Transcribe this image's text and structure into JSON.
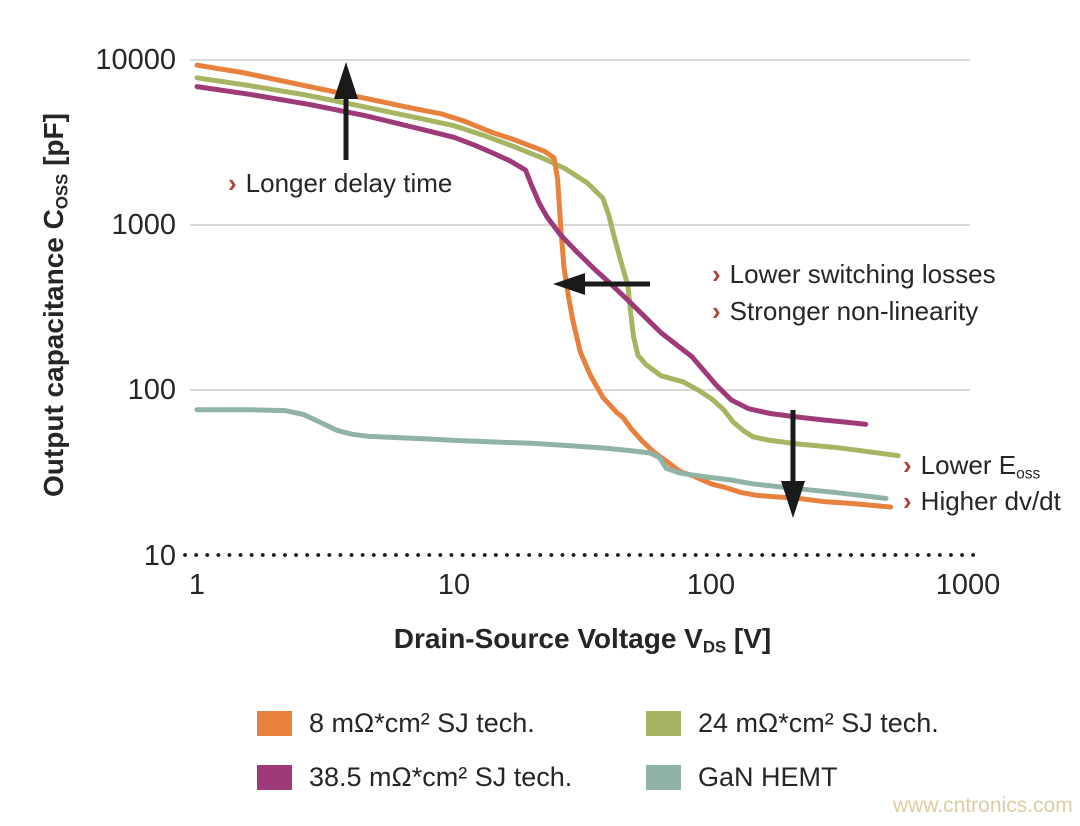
{
  "page": {
    "background": "#ffffff"
  },
  "watermark": {
    "text": "www.cntronics.com",
    "color": "#ddcda6"
  },
  "chart_data": {
    "type": "line",
    "title": "",
    "legend_position": "bottom",
    "marker_color": "#b2423c",
    "x_axis": {
      "label_main": "Drain-Source Voltage V",
      "label_sub": "DS",
      "label_unit": " [V]",
      "scale": "log",
      "ticks": [
        "1",
        "10",
        "100",
        "1000"
      ],
      "xlim": [
        1,
        1000
      ]
    },
    "y_axis": {
      "label_main": "Output capacitance C",
      "label_sub": "OSS",
      "label_unit": " [pF]",
      "scale": "log",
      "ticks": [
        "10000",
        "1000",
        "100",
        "10"
      ],
      "ylim": [
        10,
        10000
      ]
    },
    "grid": {
      "solid_lines_pF": [
        10000,
        1000,
        100
      ],
      "dotted_line_pF": 10,
      "color": "#dcdad8",
      "dotted_color": "#1a1a1a"
    },
    "series": [
      {
        "id": "8mohm-sj",
        "name": "8 mΩ*cm² SJ tech.",
        "color": "#e8813e",
        "points": [
          [
            1,
            9300
          ],
          [
            1.5,
            8400
          ],
          [
            2.5,
            7100
          ],
          [
            4,
            6100
          ],
          [
            6.5,
            5200
          ],
          [
            9,
            4700
          ],
          [
            11,
            4250
          ],
          [
            14,
            3650
          ],
          [
            17,
            3300
          ],
          [
            20,
            3000
          ],
          [
            22.5,
            2800
          ],
          [
            24.5,
            2550
          ],
          [
            25.3,
            1900
          ],
          [
            26,
            1000
          ],
          [
            26.8,
            550
          ],
          [
            27.8,
            380
          ],
          [
            29,
            265
          ],
          [
            31,
            170
          ],
          [
            34,
            122
          ],
          [
            38,
            90
          ],
          [
            43,
            73
          ],
          [
            45.5,
            68
          ],
          [
            49,
            58
          ],
          [
            54,
            49
          ],
          [
            60,
            42
          ],
          [
            67,
            37
          ],
          [
            76,
            32
          ],
          [
            86,
            30
          ],
          [
            100,
            27
          ],
          [
            115,
            25.5
          ],
          [
            130,
            24
          ],
          [
            150,
            23
          ],
          [
            180,
            22.5
          ],
          [
            220,
            22
          ],
          [
            280,
            21
          ],
          [
            360,
            20.5
          ],
          [
            500,
            19.5
          ]
        ]
      },
      {
        "id": "24mohm-sj",
        "name": "24 mΩ*cm² SJ tech.",
        "color": "#a6b562",
        "points": [
          [
            1,
            7800
          ],
          [
            1.6,
            7000
          ],
          [
            2.7,
            6100
          ],
          [
            4.5,
            5200
          ],
          [
            7.5,
            4400
          ],
          [
            10,
            4000
          ],
          [
            13,
            3500
          ],
          [
            17,
            3000
          ],
          [
            22,
            2550
          ],
          [
            27,
            2200
          ],
          [
            33,
            1800
          ],
          [
            38,
            1450
          ],
          [
            40,
            1150
          ],
          [
            42,
            850
          ],
          [
            44,
            650
          ],
          [
            46,
            510
          ],
          [
            47.5,
            430
          ],
          [
            48.5,
            310
          ],
          [
            50,
            210
          ],
          [
            52,
            162
          ],
          [
            56,
            142
          ],
          [
            64,
            122
          ],
          [
            78,
            112
          ],
          [
            90,
            99
          ],
          [
            101,
            88
          ],
          [
            112,
            76
          ],
          [
            122,
            64
          ],
          [
            135,
            56
          ],
          [
            146,
            52
          ],
          [
            170,
            49.5
          ],
          [
            220,
            47
          ],
          [
            300,
            45
          ],
          [
            400,
            42.5
          ],
          [
            535,
            40
          ]
        ]
      },
      {
        "id": "38_5mohm-sj",
        "name": "38.5 mΩ*cm² SJ tech.",
        "color": "#9e3a78",
        "points": [
          [
            1,
            6900
          ],
          [
            1.6,
            6200
          ],
          [
            2.7,
            5400
          ],
          [
            4.5,
            4600
          ],
          [
            7,
            3900
          ],
          [
            10,
            3400
          ],
          [
            12,
            3050
          ],
          [
            14,
            2750
          ],
          [
            16.5,
            2450
          ],
          [
            19,
            2150
          ],
          [
            20,
            1750
          ],
          [
            21.5,
            1350
          ],
          [
            23,
            1120
          ],
          [
            26,
            870
          ],
          [
            30,
            690
          ],
          [
            35,
            545
          ],
          [
            41,
            435
          ],
          [
            48,
            345
          ],
          [
            56,
            272
          ],
          [
            64,
            222
          ],
          [
            74,
            186
          ],
          [
            84,
            160
          ],
          [
            95,
            128
          ],
          [
            105,
            107
          ],
          [
            120,
            87
          ],
          [
            140,
            77
          ],
          [
            170,
            72
          ],
          [
            210,
            69
          ],
          [
            270,
            66
          ],
          [
            330,
            64
          ],
          [
            400,
            62
          ]
        ]
      },
      {
        "id": "gan-hemt",
        "name": "GaN HEMT",
        "color": "#91b3a6",
        "points": [
          [
            1,
            76
          ],
          [
            1.6,
            76
          ],
          [
            2.2,
            75
          ],
          [
            2.6,
            71
          ],
          [
            3,
            64
          ],
          [
            3.5,
            57
          ],
          [
            4,
            54
          ],
          [
            4.6,
            52.5
          ],
          [
            6,
            51.5
          ],
          [
            8,
            50.5
          ],
          [
            10,
            49.5
          ],
          [
            14,
            48.5
          ],
          [
            20,
            47.5
          ],
          [
            28,
            46
          ],
          [
            38,
            44.5
          ],
          [
            48,
            43
          ],
          [
            58,
            41.5
          ],
          [
            63,
            39
          ],
          [
            67,
            33.5
          ],
          [
            75,
            31.5
          ],
          [
            85,
            30.5
          ],
          [
            100,
            29.5
          ],
          [
            120,
            28.5
          ],
          [
            145,
            27
          ],
          [
            180,
            26
          ],
          [
            230,
            25
          ],
          [
            300,
            24
          ],
          [
            380,
            23
          ],
          [
            480,
            22
          ]
        ]
      }
    ],
    "arrows": [
      {
        "dir": "up",
        "x": 346,
        "from": 160,
        "to": 62
      },
      {
        "dir": "left",
        "y": 284,
        "from": 650,
        "to": 553
      },
      {
        "dir": "down",
        "x": 793,
        "from": 410,
        "to": 518
      }
    ],
    "annotations": {
      "longer_delay": {
        "marker": "›",
        "text": "Longer delay time"
      },
      "lower_switching": {
        "marker": "›",
        "text": "Lower switching losses"
      },
      "stronger_nonlinearity": {
        "marker": "›",
        "text": "Stronger non-linearity"
      },
      "lower_eoss": {
        "marker": "›",
        "text_main": "Lower E",
        "text_sub": "oss"
      },
      "higher_dvdt": {
        "marker": "›",
        "text": "Higher dv/dt"
      }
    }
  }
}
